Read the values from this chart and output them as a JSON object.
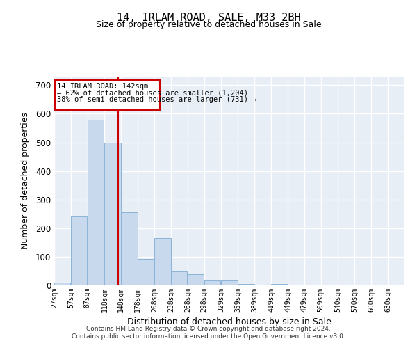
{
  "title": "14, IRLAM ROAD, SALE, M33 2BH",
  "subtitle": "Size of property relative to detached houses in Sale",
  "xlabel": "Distribution of detached houses by size in Sale",
  "ylabel": "Number of detached properties",
  "bar_color": "#c8d9ed",
  "bar_edge_color": "#8ab4d8",
  "background_color": "#e8eef6",
  "grid_color": "#ffffff",
  "vline_x": 142,
  "vline_color": "#cc0000",
  "annotation_title": "14 IRLAM ROAD: 142sqm",
  "annotation_line2": "← 62% of detached houses are smaller (1,204)",
  "annotation_line3": "38% of semi-detached houses are larger (731) →",
  "annotation_box_color": "#ffffff",
  "annotation_box_edge": "#cc0000",
  "bins": [
    27,
    57,
    87,
    118,
    148,
    178,
    208,
    238,
    268,
    298,
    329,
    359,
    389,
    419,
    449,
    479,
    509,
    540,
    570,
    600,
    630
  ],
  "values": [
    10,
    240,
    580,
    500,
    255,
    93,
    165,
    48,
    38,
    18,
    18,
    4,
    0,
    4,
    2,
    0,
    2,
    0,
    0,
    0,
    0
  ],
  "ylim": [
    0,
    730
  ],
  "yticks": [
    0,
    100,
    200,
    300,
    400,
    500,
    600,
    700
  ],
  "footer_line1": "Contains HM Land Registry data © Crown copyright and database right 2024.",
  "footer_line2": "Contains public sector information licensed under the Open Government Licence v3.0."
}
